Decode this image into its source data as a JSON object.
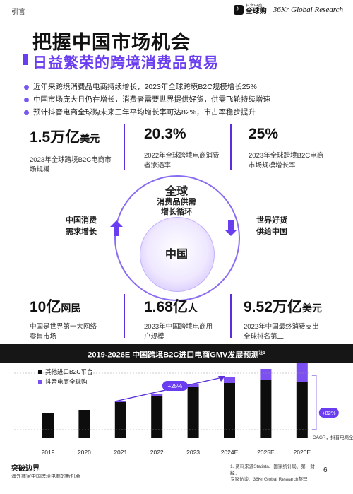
{
  "section_label": "引言",
  "brand": {
    "douyin_small": "抖音电商",
    "douyin_big": "全球购",
    "partner": "36Kr Global Research"
  },
  "title": "把握中国市场机会",
  "subtitle": "日益繁荣的跨境消费品贸易",
  "bullets": [
    "近年来跨境消费品电商持续增长，2023年全球跨境B2C规模增长25%",
    "中国市场庞大且仍在增长，消费者需要世界提供好货，供需飞轮持续增速",
    "预计抖音电商全球购未来三年平均增长率可达82%，市占率稳步提升"
  ],
  "stats_top": [
    {
      "value": "1.5万亿",
      "unit": "美元",
      "desc": "2023年全球跨境B2C电商市场规模"
    },
    {
      "value": "20.3%",
      "unit": "",
      "desc": "2022年全球跨境电商消费者渗透率"
    },
    {
      "value": "25%",
      "unit": "",
      "desc": "2023年全球跨境B2C电商市场规模增长率"
    }
  ],
  "cycle": {
    "top_title": "全球",
    "top_sub1": "消费品供需",
    "top_sub2": "增长循环",
    "center": "中国",
    "left_line1": "中国消费",
    "left_line2": "需求增长",
    "right_line1": "世界好货",
    "right_line2": "供给中国"
  },
  "stats_bottom": [
    {
      "value": "10亿",
      "unit": "网民",
      "desc": "中国是世界第一大网络零售市场"
    },
    {
      "value": "1.68亿",
      "unit": "人",
      "desc": "2023年中国跨境电商用户规模"
    },
    {
      "value": "9.52万亿",
      "unit": "美元",
      "desc": "2022年中国最终消费支出全球排名第二"
    }
  ],
  "chart_header": "2019-2026E 中国跨境B2C进口电商GMV发展预测",
  "chart_header_note": "注1",
  "chart_data": {
    "type": "bar",
    "stacked": true,
    "categories": [
      "2019",
      "2020",
      "2021",
      "2022",
      "2023",
      "2024E",
      "2025E",
      "2026E"
    ],
    "series": [
      {
        "name": "其他进口B2C平台",
        "values": [
          36,
          40,
          51,
          60,
          72,
          78,
          82,
          80
        ]
      },
      {
        "name": "抖音电商全球购",
        "values": [
          0,
          0,
          1.5,
          3,
          5,
          9,
          16,
          30
        ]
      }
    ],
    "annotations": {
      "growth_left": "+25%",
      "growth_right": "+82%",
      "cagr_note": "CAGR，抖音电商全球购"
    },
    "legend_position": "top-left",
    "colors": {
      "other": "#0d0d0d",
      "douyin": "#7b4ff0"
    }
  },
  "footer": {
    "title": "突破边界",
    "subtitle": "海外商家中国跨境电商的新机会",
    "footnote_line1": "1. 资料来源Statista、国家统计局、第一财经、",
    "footnote_line2": "专家访谈、36Kr Global Research整理",
    "page": "6"
  }
}
